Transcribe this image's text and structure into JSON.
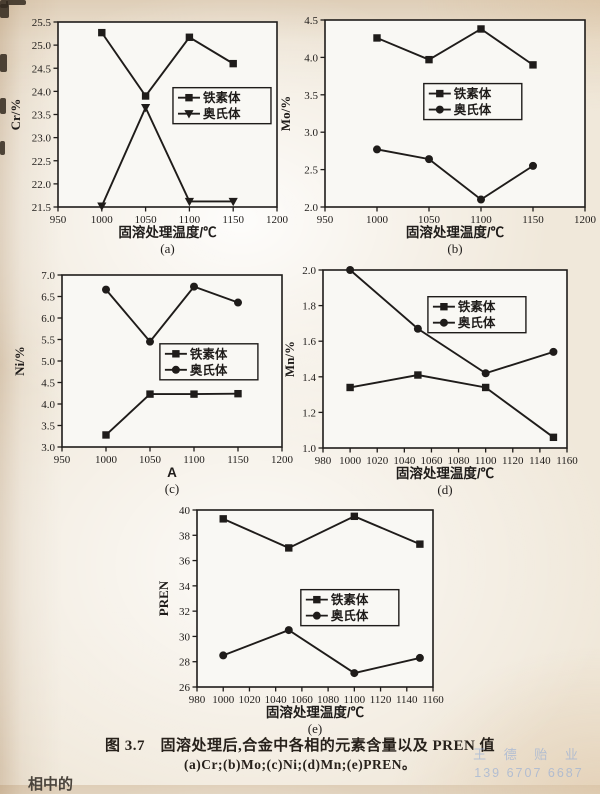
{
  "page": {
    "caption_line1": "图 3.7　固溶处理后,合金中各相的元素含量以及 PREN 值",
    "caption_line2": "(a)Cr;(b)Mo;(c)Ni;(d)Mn;(e)PREN。",
    "cutoff_text": "相中的",
    "watermark": {
      "line1": "王 德 贻 业",
      "line2": "139 6707 6687"
    }
  },
  "colors": {
    "ink": "#1f1c1a",
    "plot_bg": "#f9f8f4",
    "watermark_blue": "#96aed6"
  },
  "chart_data": [
    {
      "id": "a",
      "type": "line",
      "title": "",
      "xlabel": "固溶处理温度/℃",
      "ylabel": "Cr/%",
      "sublabel": "(a)",
      "x": [
        1000,
        1050,
        1100,
        1150
      ],
      "xlim": [
        950,
        1200
      ],
      "xticks": [
        950,
        1000,
        1050,
        1100,
        1150,
        1200
      ],
      "ylim": [
        21.5,
        25.5
      ],
      "yticks": [
        21.5,
        22.0,
        22.5,
        23.0,
        23.5,
        24.0,
        24.5,
        25.0,
        25.5
      ],
      "ytick_decimals": 1,
      "grid": false,
      "series": [
        {
          "name": "铁素体",
          "marker": "square",
          "values": [
            25.27,
            23.9,
            25.17,
            24.6
          ]
        },
        {
          "name": "奥氏体",
          "marker": "triangle-down",
          "values": [
            21.52,
            23.65,
            21.62,
            21.62
          ]
        }
      ],
      "legend": {
        "fx": 0.525,
        "fy": 0.355
      }
    },
    {
      "id": "b",
      "type": "line",
      "title": "",
      "xlabel": "固溶处理温度/℃",
      "ylabel": "Mo/%",
      "sublabel": "(b)",
      "x": [
        1000,
        1050,
        1100,
        1150
      ],
      "xlim": [
        950,
        1200
      ],
      "xticks": [
        950,
        1000,
        1050,
        1100,
        1150,
        1200
      ],
      "ylim": [
        2.0,
        4.5
      ],
      "yticks": [
        2.0,
        2.5,
        3.0,
        3.5,
        4.0,
        4.5
      ],
      "ytick_decimals": 1,
      "grid": false,
      "series": [
        {
          "name": "铁素体",
          "marker": "square",
          "values": [
            4.26,
            3.97,
            4.38,
            3.9
          ]
        },
        {
          "name": "奥氏体",
          "marker": "circle",
          "values": [
            2.77,
            2.64,
            2.1,
            2.55
          ]
        }
      ],
      "legend": {
        "fx": 0.38,
        "fy": 0.34
      }
    },
    {
      "id": "c",
      "type": "line",
      "title": "",
      "xlabel": "A",
      "ylabel": "Ni/%",
      "sublabel": "(c)",
      "x": [
        1000,
        1050,
        1100,
        1150
      ],
      "xlim": [
        950,
        1200
      ],
      "xticks": [
        950,
        1000,
        1050,
        1100,
        1150,
        1200
      ],
      "ylim": [
        3.0,
        7.0
      ],
      "yticks": [
        3.0,
        3.5,
        4.0,
        4.5,
        5.0,
        5.5,
        6.0,
        6.5,
        7.0
      ],
      "ytick_decimals": 1,
      "grid": false,
      "series": [
        {
          "name": "铁素体",
          "marker": "square",
          "values": [
            3.28,
            4.23,
            4.23,
            4.24
          ]
        },
        {
          "name": "奥氏体",
          "marker": "circle",
          "values": [
            6.66,
            5.45,
            6.73,
            6.36
          ]
        }
      ],
      "legend": {
        "fx": 0.445,
        "fy": 0.4
      }
    },
    {
      "id": "d",
      "type": "line",
      "title": "",
      "xlabel": "固溶处理温度/℃",
      "ylabel": "Mn/%",
      "sublabel": "(d)",
      "x": [
        1000,
        1050,
        1100,
        1150
      ],
      "xlim": [
        980,
        1160
      ],
      "xticks": [
        980,
        1000,
        1020,
        1040,
        1060,
        1080,
        1100,
        1120,
        1140,
        1160
      ],
      "ylim": [
        1.0,
        2.0
      ],
      "yticks": [
        1.0,
        1.2,
        1.4,
        1.6,
        1.8,
        2.0
      ],
      "ytick_decimals": 1,
      "grid": false,
      "series": [
        {
          "name": "铁素体",
          "marker": "square",
          "values": [
            1.34,
            1.41,
            1.34,
            1.06
          ]
        },
        {
          "name": "奥氏体",
          "marker": "circle",
          "values": [
            2.0,
            1.67,
            1.42,
            1.54
          ]
        }
      ],
      "legend": {
        "fx": 0.43,
        "fy": 0.15
      }
    },
    {
      "id": "e",
      "type": "line",
      "title": "",
      "xlabel": "固溶处理温度/℃",
      "ylabel": "PREN",
      "sublabel": "(e)",
      "x": [
        1000,
        1050,
        1100,
        1150
      ],
      "xlim": [
        980,
        1160
      ],
      "xticks": [
        980,
        1000,
        1020,
        1040,
        1060,
        1080,
        1100,
        1120,
        1140,
        1160
      ],
      "ylim": [
        26,
        40
      ],
      "yticks": [
        26,
        28,
        30,
        32,
        34,
        36,
        38,
        40
      ],
      "ytick_decimals": 0,
      "grid": false,
      "series": [
        {
          "name": "铁素体",
          "marker": "square",
          "values": [
            39.3,
            37.0,
            39.5,
            37.3
          ]
        },
        {
          "name": "奥氏体",
          "marker": "circle",
          "values": [
            28.5,
            30.5,
            27.1,
            28.3
          ]
        }
      ],
      "legend": {
        "fx": 0.44,
        "fy": 0.45
      }
    }
  ]
}
